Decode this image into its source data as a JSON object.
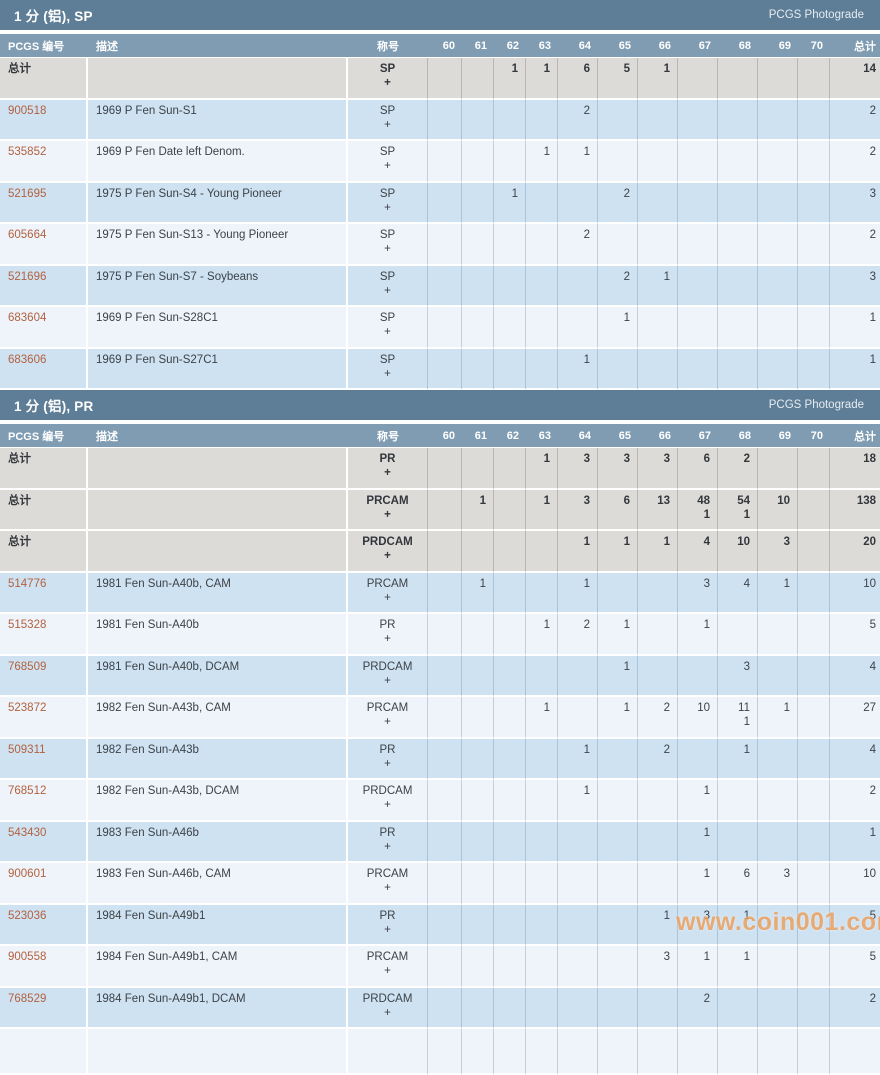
{
  "photograde_link": "PCGS Photograde",
  "plus_symbol": "+",
  "watermark": "www.coin001.com",
  "columns": {
    "number": "PCGS 编号",
    "description": "描述",
    "designation": "称号",
    "grades": [
      "60",
      "61",
      "62",
      "63",
      "64",
      "65",
      "66",
      "67",
      "68",
      "69",
      "70"
    ],
    "total": "总计"
  },
  "colors": {
    "section_bar": "#5e7d96",
    "column_header": "#7f9cb2",
    "total_row": "#dcdbd8",
    "row_blue": "#cfe2f1",
    "row_light": "#eef4fa",
    "link": "#b26140",
    "watermark": "#eda15f"
  },
  "sections": [
    {
      "title": "1 分 (铝), SP",
      "rows": [
        {
          "kind": "total",
          "number": "总计",
          "description": "",
          "designation": "SP",
          "grades": {
            "62": "1",
            "63": "1",
            "64": "6",
            "65": "5",
            "66": "1"
          },
          "plus": {},
          "total": "14"
        },
        {
          "kind": "data",
          "number": "900518",
          "description": "1969 P Fen Sun-S1",
          "designation": "SP",
          "grades": {
            "64": "2"
          },
          "plus": {},
          "total": "2"
        },
        {
          "kind": "data",
          "number": "535852",
          "description": "1969 P Fen Date left Denom.",
          "designation": "SP",
          "grades": {
            "63": "1",
            "64": "1"
          },
          "plus": {},
          "total": "2"
        },
        {
          "kind": "data",
          "number": "521695",
          "description": "1975 P Fen Sun-S4 - Young Pioneer",
          "designation": "SP",
          "grades": {
            "62": "1",
            "65": "2"
          },
          "plus": {},
          "total": "3"
        },
        {
          "kind": "data",
          "number": "605664",
          "description": "1975 P Fen Sun-S13 - Young Pioneer",
          "designation": "SP",
          "grades": {
            "64": "2"
          },
          "plus": {},
          "total": "2"
        },
        {
          "kind": "data",
          "number": "521696",
          "description": "1975 P Fen Sun-S7 - Soybeans",
          "designation": "SP",
          "grades": {
            "65": "2",
            "66": "1"
          },
          "plus": {},
          "total": "3"
        },
        {
          "kind": "data",
          "number": "683604",
          "description": "1969 P Fen Sun-S28C1",
          "designation": "SP",
          "grades": {
            "65": "1"
          },
          "plus": {},
          "total": "1"
        },
        {
          "kind": "data",
          "number": "683606",
          "description": "1969 P Fen Sun-S27C1",
          "designation": "SP",
          "grades": {
            "64": "1"
          },
          "plus": {},
          "total": "1"
        }
      ],
      "partial_row": false
    },
    {
      "title": "1 分 (铝), PR",
      "rows": [
        {
          "kind": "total",
          "number": "总计",
          "description": "",
          "designation": "PR",
          "grades": {
            "63": "1",
            "64": "3",
            "65": "3",
            "66": "3",
            "67": "6",
            "68": "2"
          },
          "plus": {},
          "total": "18"
        },
        {
          "kind": "total",
          "number": "总计",
          "description": "",
          "designation": "PRCAM",
          "grades": {
            "61": "1",
            "63": "1",
            "64": "3",
            "65": "6",
            "66": "13",
            "67": "48",
            "68": "54",
            "69": "10"
          },
          "plus": {
            "67": "1",
            "68": "1"
          },
          "total": "138"
        },
        {
          "kind": "total",
          "number": "总计",
          "description": "",
          "designation": "PRDCAM",
          "grades": {
            "64": "1",
            "65": "1",
            "66": "1",
            "67": "4",
            "68": "10",
            "69": "3"
          },
          "plus": {},
          "total": "20"
        },
        {
          "kind": "data",
          "number": "514776",
          "description": "1981 Fen Sun-A40b, CAM",
          "designation": "PRCAM",
          "grades": {
            "61": "1",
            "64": "1",
            "67": "3",
            "68": "4",
            "69": "1"
          },
          "plus": {},
          "total": "10"
        },
        {
          "kind": "data",
          "number": "515328",
          "description": "1981 Fen Sun-A40b",
          "designation": "PR",
          "grades": {
            "63": "1",
            "64": "2",
            "65": "1",
            "67": "1"
          },
          "plus": {},
          "total": "5"
        },
        {
          "kind": "data",
          "number": "768509",
          "description": "1981 Fen Sun-A40b, DCAM",
          "designation": "PRDCAM",
          "grades": {
            "65": "1",
            "68": "3"
          },
          "plus": {},
          "total": "4"
        },
        {
          "kind": "data",
          "number": "523872",
          "description": "1982 Fen Sun-A43b, CAM",
          "designation": "PRCAM",
          "grades": {
            "63": "1",
            "65": "1",
            "66": "2",
            "67": "10",
            "68": "11",
            "69": "1"
          },
          "plus": {
            "68": "1"
          },
          "total": "27"
        },
        {
          "kind": "data",
          "number": "509311",
          "description": "1982 Fen Sun-A43b",
          "designation": "PR",
          "grades": {
            "64": "1",
            "66": "2",
            "68": "1"
          },
          "plus": {},
          "total": "4"
        },
        {
          "kind": "data",
          "number": "768512",
          "description": "1982 Fen Sun-A43b, DCAM",
          "designation": "PRDCAM",
          "grades": {
            "64": "1",
            "67": "1"
          },
          "plus": {},
          "total": "2"
        },
        {
          "kind": "data",
          "number": "543430",
          "description": "1983 Fen Sun-A46b",
          "designation": "PR",
          "grades": {
            "67": "1"
          },
          "plus": {},
          "total": "1"
        },
        {
          "kind": "data",
          "number": "900601",
          "description": "1983 Fen Sun-A46b, CAM",
          "designation": "PRCAM",
          "grades": {
            "67": "1",
            "68": "6",
            "69": "3"
          },
          "plus": {},
          "total": "10"
        },
        {
          "kind": "data",
          "number": "523036",
          "description": "1984 Fen Sun-A49b1",
          "designation": "PR",
          "grades": {
            "66": "1",
            "67": "3",
            "68": "1"
          },
          "plus": {},
          "total": "5"
        },
        {
          "kind": "data",
          "number": "900558",
          "description": "1984 Fen Sun-A49b1, CAM",
          "designation": "PRCAM",
          "grades": {
            "66": "3",
            "67": "1",
            "68": "1"
          },
          "plus": {},
          "total": "5"
        },
        {
          "kind": "data",
          "number": "768529",
          "description": "1984 Fen Sun-A49b1, DCAM",
          "designation": "PRDCAM",
          "grades": {
            "67": "2"
          },
          "plus": {},
          "total": "2"
        }
      ],
      "partial_row": true
    }
  ]
}
